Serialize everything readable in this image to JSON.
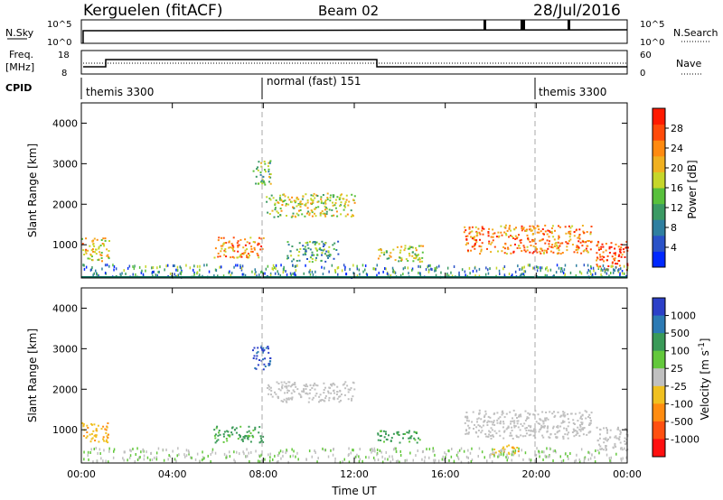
{
  "header": {
    "station": "Kerguelen (fitACF)",
    "beam": "Beam 02",
    "date": "28/Jul/2016"
  },
  "strip_panels": {
    "nsky": {
      "label": "N.Sky",
      "ticks_left": [
        "10^5",
        "10^0"
      ],
      "ticks_right": [
        "10^5",
        "10^0"
      ],
      "right_label": "N.Search"
    },
    "freq": {
      "label_line1": "Freq.",
      "label_line2": "[MHz]",
      "ticks_left": [
        "18",
        "8"
      ],
      "ticks_right": [
        "60",
        "0"
      ],
      "right_label": "Nave"
    },
    "cpid": {
      "label": "CPID",
      "segments": [
        {
          "name": "themis 3300",
          "start_hour": 0,
          "end_hour": 8
        },
        {
          "name": "normal (fast) 151",
          "start_hour": 8,
          "end_hour": 20
        },
        {
          "name": "themis 3300",
          "start_hour": 20,
          "end_hour": 24
        }
      ]
    }
  },
  "chart_data": [
    {
      "type": "heatmap",
      "panel": "power",
      "ylabel": "Slant Range [km]",
      "xlabel": "",
      "xlim": [
        0,
        24
      ],
      "ylim": [
        180,
        4500
      ],
      "yticks": [
        "1000",
        "2000",
        "3000",
        "4000"
      ],
      "colorbar": {
        "label": "Power [dB]",
        "ticks": [
          "4",
          "8",
          "12",
          "16",
          "20",
          "24",
          "28"
        ],
        "colors": [
          "#0028ff",
          "#2a52c8",
          "#2f7fa0",
          "#3b9a64",
          "#58c03c",
          "#c6d62a",
          "#f0b020",
          "#ff8a10",
          "#ff4a0a",
          "#ff1a00"
        ]
      },
      "regions": [
        {
          "x_start": 0.0,
          "x_end": 1.2,
          "range_start": 600,
          "range_end": 1200,
          "level": 6
        },
        {
          "x_start": 5.8,
          "x_end": 8.0,
          "range_start": 700,
          "range_end": 1200,
          "level": 7
        },
        {
          "x_start": 7.5,
          "x_end": 8.3,
          "range_start": 2500,
          "range_end": 3100,
          "level": 4
        },
        {
          "x_start": 8.1,
          "x_end": 12.0,
          "range_start": 1700,
          "range_end": 2300,
          "level": 5
        },
        {
          "x_start": 9.0,
          "x_end": 11.3,
          "range_start": 600,
          "range_end": 1100,
          "level": 3
        },
        {
          "x_start": 13.0,
          "x_end": 15.0,
          "range_start": 600,
          "range_end": 1000,
          "level": 5
        },
        {
          "x_start": 16.8,
          "x_end": 22.4,
          "range_start": 800,
          "range_end": 1500,
          "level": 7
        },
        {
          "x_start": 22.6,
          "x_end": 24.0,
          "range_start": 400,
          "range_end": 1100,
          "level": 8
        }
      ]
    },
    {
      "type": "heatmap",
      "panel": "velocity",
      "ylabel": "Slant Range [km]",
      "xlabel": "Time UT",
      "xlim": [
        0,
        24
      ],
      "ylim": [
        180,
        4500
      ],
      "xticks": [
        "00:00",
        "04:00",
        "08:00",
        "12:00",
        "16:00",
        "20:00",
        "00:00"
      ],
      "yticks": [
        "1000",
        "2000",
        "3000",
        "4000"
      ],
      "colorbar": {
        "label": "Velocity [m s^-1]",
        "ticks": [
          "1000",
          "500",
          "100",
          "25",
          "-25",
          "-100",
          "-500",
          "-1000"
        ],
        "colors": [
          "#2c40c8",
          "#2c7ab4",
          "#3a9a58",
          "#63c83c",
          "#c0c0c0",
          "#f0c020",
          "#ff8c10",
          "#ff5010",
          "#ff1010"
        ]
      },
      "regions": [
        {
          "x_start": 0.0,
          "x_end": 1.2,
          "range_start": 700,
          "range_end": 1200,
          "class": "orange"
        },
        {
          "x_start": 5.8,
          "x_end": 8.0,
          "range_start": 700,
          "range_end": 1100,
          "class": "green"
        },
        {
          "x_start": 7.5,
          "x_end": 8.3,
          "range_start": 2500,
          "range_end": 3100,
          "class": "blue"
        },
        {
          "x_start": 8.1,
          "x_end": 12.0,
          "range_start": 1700,
          "range_end": 2200,
          "class": "gray"
        },
        {
          "x_start": 13.0,
          "x_end": 15.0,
          "range_start": 700,
          "range_end": 1000,
          "class": "green"
        },
        {
          "x_start": 16.8,
          "x_end": 22.4,
          "range_start": 800,
          "range_end": 1500,
          "class": "gray"
        },
        {
          "x_start": 18.0,
          "x_end": 19.2,
          "range_start": 400,
          "range_end": 650,
          "class": "orange"
        },
        {
          "x_start": 22.6,
          "x_end": 24.0,
          "range_start": 500,
          "range_end": 1100,
          "class": "gray"
        }
      ]
    }
  ]
}
